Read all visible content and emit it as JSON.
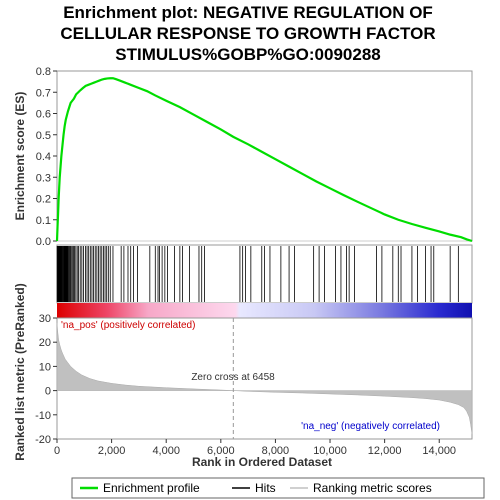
{
  "chart_data": {
    "type": "line",
    "title_lines": [
      "Enrichment plot: NEGATIVE REGULATION OF",
      "CELLULAR RESPONSE TO GROWTH FACTOR",
      "STIMULUS%GOBP%GO:0090288"
    ],
    "top_panel": {
      "ylabel": "Enrichment score (ES)",
      "ylim": [
        0,
        0.8
      ],
      "yticks": [
        "0.0",
        "0.1",
        "0.2",
        "0.3",
        "0.4",
        "0.5",
        "0.6",
        "0.7",
        "0.8"
      ],
      "line_color": "#00dd00",
      "es_curve": {
        "x": [
          0,
          20,
          40,
          60,
          80,
          100,
          130,
          160,
          200,
          240,
          280,
          320,
          360,
          400,
          450,
          500,
          560,
          620,
          700,
          780,
          860,
          950,
          1050,
          1150,
          1250,
          1350,
          1450,
          1550,
          1650,
          1750,
          1850,
          1950,
          2050,
          2150,
          2300,
          2500,
          2700,
          3000,
          3300,
          3600,
          4000,
          4500,
          5000,
          5500,
          6000,
          6458,
          7000,
          7500,
          8000,
          8500,
          9000,
          9500,
          10000,
          10500,
          11000,
          11500,
          12000,
          12500,
          13000,
          13500,
          14000,
          14400,
          14800,
          15000,
          15200
        ],
        "y": [
          0.0,
          0.07,
          0.13,
          0.2,
          0.25,
          0.3,
          0.35,
          0.4,
          0.45,
          0.5,
          0.54,
          0.57,
          0.59,
          0.61,
          0.63,
          0.65,
          0.66,
          0.67,
          0.69,
          0.7,
          0.71,
          0.72,
          0.73,
          0.735,
          0.74,
          0.745,
          0.75,
          0.755,
          0.76,
          0.763,
          0.765,
          0.766,
          0.766,
          0.762,
          0.755,
          0.745,
          0.735,
          0.72,
          0.705,
          0.685,
          0.66,
          0.63,
          0.595,
          0.56,
          0.525,
          0.49,
          0.455,
          0.42,
          0.385,
          0.35,
          0.315,
          0.28,
          0.248,
          0.216,
          0.185,
          0.155,
          0.125,
          0.1,
          0.08,
          0.062,
          0.045,
          0.03,
          0.018,
          0.008,
          0.0
        ]
      }
    },
    "hits_panel": {
      "hit_positions": [
        5,
        20,
        40,
        60,
        80,
        100,
        120,
        140,
        160,
        180,
        200,
        220,
        240,
        260,
        280,
        300,
        320,
        340,
        360,
        380,
        400,
        430,
        460,
        490,
        520,
        560,
        600,
        640,
        690,
        740,
        790,
        850,
        910,
        970,
        1040,
        1100,
        1160,
        1220,
        1280,
        1340,
        1400,
        1460,
        1520,
        1580,
        1640,
        1700,
        1760,
        1820,
        1880,
        1950,
        2050,
        2350,
        2450,
        2600,
        2700,
        2800,
        2950,
        3400,
        3600,
        3700,
        3750,
        3850,
        3950,
        4050,
        4300,
        4500,
        4600,
        4850,
        5200,
        5300,
        5400,
        6700,
        6800,
        6900,
        7100,
        7500,
        7600,
        7800,
        8200,
        8500,
        8700,
        9400,
        9600,
        9800,
        10200,
        10400,
        10600,
        10700,
        10900,
        11700,
        11900,
        12300,
        12500,
        12600,
        13000,
        13200,
        13500,
        13700,
        13800,
        14400,
        14700
      ]
    },
    "ranked_panel": {
      "ylabel": "Ranked list metric (PreRanked)",
      "ylim": [
        -20,
        30
      ],
      "yticks": [
        "-20",
        "-10",
        "0",
        "10",
        "20",
        "30"
      ],
      "metric_curve": {
        "x": [
          0,
          30,
          60,
          100,
          150,
          200,
          300,
          400,
          500,
          700,
          900,
          1200,
          1500,
          2000,
          2500,
          3000,
          4000,
          5000,
          6000,
          6458,
          7000,
          8000,
          9000,
          10000,
          11000,
          12000,
          13000,
          13500,
          14000,
          14400,
          14700,
          14900,
          15000,
          15100,
          15150,
          15200
        ],
        "y": [
          28,
          24,
          21,
          19,
          17,
          15.5,
          13,
          11.5,
          10,
          8,
          6.5,
          5,
          4,
          3,
          2.3,
          1.8,
          1.2,
          0.7,
          0.25,
          0,
          -0.3,
          -0.7,
          -1,
          -1.4,
          -1.8,
          -2.3,
          -2.9,
          -3.3,
          -3.9,
          -4.8,
          -5.8,
          -7,
          -8.5,
          -11,
          -14,
          -18
        ]
      },
      "zero_cross_x": 6458,
      "zero_cross_label": "Zero cross at 6458",
      "pos_label": "'na_pos' (positively correlated)",
      "neg_label": "'na_neg' (negatively correlated)"
    },
    "xaxis": {
      "xlabel": "Rank in Ordered Dataset",
      "xlim": [
        0,
        15200
      ],
      "xticks": [
        0,
        2000,
        4000,
        6000,
        8000,
        10000,
        12000,
        14000
      ],
      "xtick_labels": [
        "0",
        "2,000",
        "4,000",
        "6,000",
        "8,000",
        "10,000",
        "12,000",
        "14,000"
      ]
    },
    "legend": {
      "position": "bottom",
      "entries": [
        {
          "label": "Enrichment profile",
          "color": "#00dd00"
        },
        {
          "label": "Hits",
          "color": "#000000"
        },
        {
          "label": "Ranking metric scores",
          "color": "#c0c0c0"
        }
      ]
    }
  }
}
